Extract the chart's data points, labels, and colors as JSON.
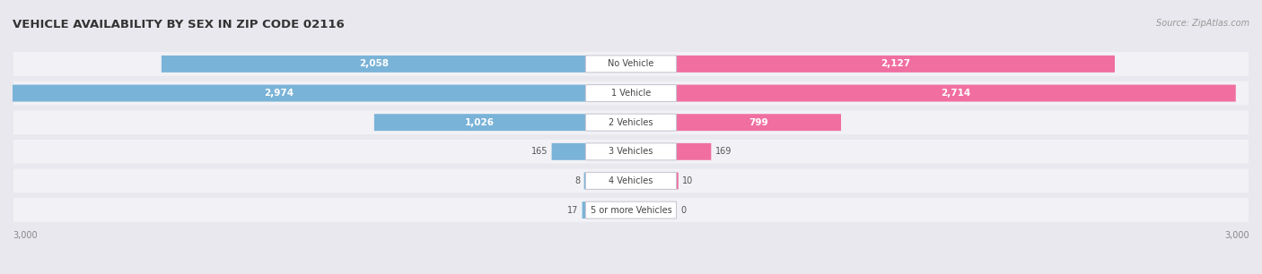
{
  "title": "VEHICLE AVAILABILITY BY SEX IN ZIP CODE 02116",
  "source_text": "Source: ZipAtlas.com",
  "categories": [
    "No Vehicle",
    "1 Vehicle",
    "2 Vehicles",
    "3 Vehicles",
    "4 Vehicles",
    "5 or more Vehicles"
  ],
  "male_values": [
    2058,
    2974,
    1026,
    165,
    8,
    17
  ],
  "female_values": [
    2127,
    2714,
    799,
    169,
    10,
    0
  ],
  "max_val": 3000,
  "male_color": "#7ab3d8",
  "female_color": "#f06fa0",
  "male_color_light": "#aed0ea",
  "female_color_light": "#f7a8c8",
  "label_color_dark": "#555555",
  "label_color_white": "#ffffff",
  "bg_color": "#e8e8ee",
  "row_bg_color": "#f2f2f6",
  "row_shadow_color": "#d0d0da",
  "center_label_bg": "#ffffff",
  "axis_label_color": "#888888",
  "title_color": "#333333",
  "source_color": "#999999",
  "figsize": [
    14.06,
    3.06
  ],
  "dpi": 100
}
